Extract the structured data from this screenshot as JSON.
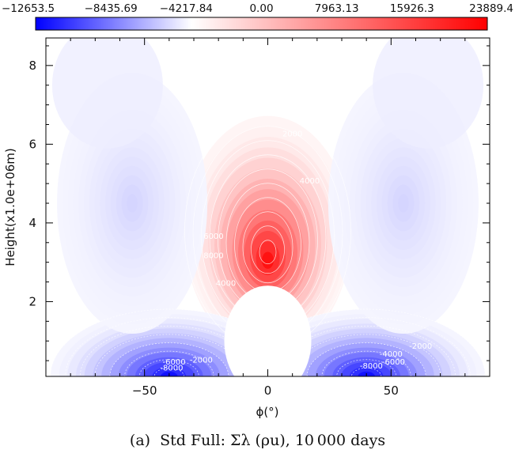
{
  "chart_data": {
    "type": "heatmap",
    "xlabel": "ϕ(°)",
    "ylabel": "Height(x1.0e+06m)",
    "xlim": [
      -90,
      90
    ],
    "ylim": [
      0.1,
      8.7
    ],
    "x_ticks": [
      {
        "value": -50,
        "label": "−50"
      },
      {
        "value": 0,
        "label": "0"
      },
      {
        "value": 50,
        "label": "50"
      }
    ],
    "y_ticks": [
      {
        "value": 2,
        "label": "2"
      },
      {
        "value": 4,
        "label": "4"
      },
      {
        "value": 6,
        "label": "6"
      },
      {
        "value": 8,
        "label": "8"
      }
    ],
    "colorbar": {
      "min": -12653.5,
      "max": 23889.4,
      "tick_labels": [
        "−12653.5",
        "−8435.69",
        "−4217.84",
        "0.00",
        "7963.13",
        "15926.3",
        "23889.4"
      ],
      "colors": {
        "negative": "#0000ff",
        "zero": "#ffffff",
        "positive": "#ff0000"
      }
    },
    "features": [
      {
        "name": "equatorial positive jet",
        "phi": 0,
        "height": 3.0,
        "peak": 23889.4
      },
      {
        "name": "southern near-surface negative",
        "phi": -40,
        "height": 0.1,
        "peak": -12653.5
      },
      {
        "name": "northern near-surface negative",
        "phi": 40,
        "height": 0.1,
        "peak": -12653.5
      },
      {
        "name": "southern mid-level negative",
        "phi": -55,
        "height": 4.5,
        "peak": -1800
      },
      {
        "name": "northern mid-level negative",
        "phi": 55,
        "height": 4.5,
        "peak": -1800
      }
    ],
    "contour_labels": [
      {
        "text": "-6000",
        "phi": -38,
        "height": 0.4
      },
      {
        "text": "-8000",
        "phi": -39,
        "height": 0.25
      },
      {
        "text": "-2000",
        "phi": -27,
        "height": 0.45
      },
      {
        "text": "-4000",
        "phi": 50,
        "height": 0.6
      },
      {
        "text": "-2000",
        "phi": 62,
        "height": 0.8
      },
      {
        "text": "-8000",
        "phi": 42,
        "height": 0.3
      },
      {
        "text": "-6000",
        "phi": 51,
        "height": 0.4
      },
      {
        "text": "2000",
        "phi": 10,
        "height": 6.2
      },
      {
        "text": "4000",
        "phi": 17,
        "height": 5.0
      },
      {
        "text": "6000",
        "phi": -22,
        "height": 3.6
      },
      {
        "text": "8000",
        "phi": -22,
        "height": 3.1
      },
      {
        "text": "4000",
        "phi": -17,
        "height": 2.4
      }
    ],
    "caption": "(a)  Std Full: Σλ (ρu), 10 000 days"
  }
}
